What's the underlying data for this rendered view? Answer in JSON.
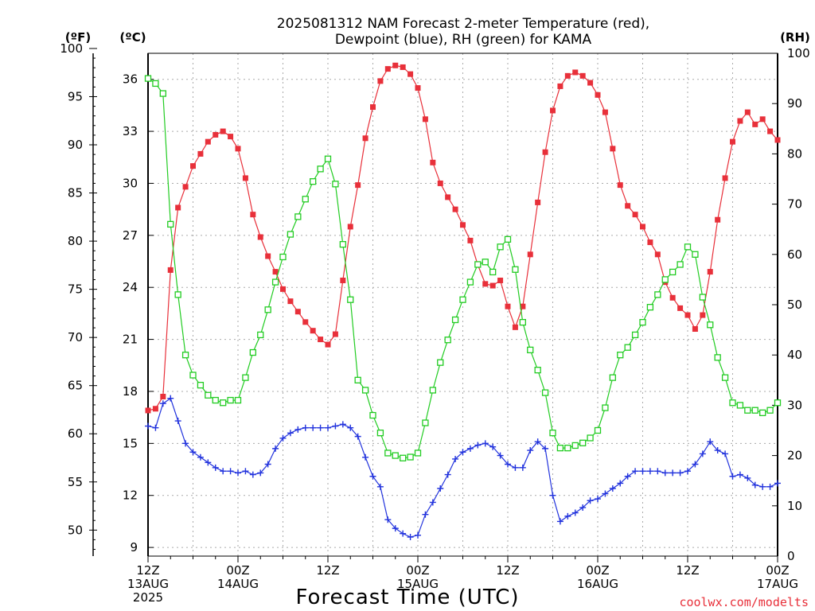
{
  "chart_data": {
    "type": "line",
    "title": [
      "2025081312 NAM Forecast 2-meter Temperature (red),",
      "Dewpoint (blue), RH (green) for KAMA"
    ],
    "xlabel": "Forecast Time (UTC)",
    "credit": "coolwx.com/modelts",
    "units": {
      "fahrenheit": "(ºF)",
      "celsius": "(ºC)",
      "rh": "(RH)"
    },
    "x_range_hours": [
      0,
      84
    ],
    "x_ticks": [
      {
        "h": 0,
        "lines": [
          "12Z",
          "13AUG",
          "2025"
        ]
      },
      {
        "h": 12,
        "lines": [
          "00Z",
          "14AUG"
        ]
      },
      {
        "h": 24,
        "lines": [
          "12Z"
        ]
      },
      {
        "h": 36,
        "lines": [
          "00Z",
          "15AUG"
        ]
      },
      {
        "h": 48,
        "lines": [
          "12Z"
        ]
      },
      {
        "h": 60,
        "lines": [
          "00Z",
          "16AUG"
        ]
      },
      {
        "h": 72,
        "lines": [
          "12Z"
        ]
      },
      {
        "h": 84,
        "lines": [
          "00Z",
          "17AUG"
        ]
      }
    ],
    "celsius_axis": {
      "ylim": [
        8.5,
        37.5
      ],
      "ticks": [
        9,
        12,
        15,
        18,
        21,
        24,
        27,
        30,
        33,
        36
      ]
    },
    "fahrenheit_axis": {
      "ticks": [
        50,
        55,
        60,
        65,
        70,
        75,
        80,
        85,
        90,
        95,
        100
      ]
    },
    "rh_axis": {
      "ylim": [
        0,
        100
      ],
      "ticks": [
        0,
        10,
        20,
        30,
        40,
        50,
        60,
        70,
        80,
        90,
        100
      ]
    },
    "series": [
      {
        "name": "Temperature",
        "color": "#e8303a",
        "marker": "filled-square",
        "axis": "celsius",
        "x": [
          0,
          1,
          2,
          3,
          4,
          5,
          6,
          7,
          8,
          9,
          10,
          11,
          12,
          13,
          14,
          15,
          16,
          17,
          18,
          19,
          20,
          21,
          22,
          23,
          24,
          25,
          26,
          27,
          28,
          29,
          30,
          31,
          32,
          33,
          34,
          35,
          36,
          37,
          38,
          39,
          40,
          41,
          42,
          43,
          44,
          45,
          46,
          47,
          48,
          49,
          50,
          51,
          52,
          53,
          54,
          55,
          56,
          57,
          58,
          59,
          60,
          61,
          62,
          63,
          64,
          65,
          66,
          67,
          68,
          69,
          70,
          71,
          72,
          73,
          74,
          75,
          76,
          77,
          78,
          79,
          80,
          81,
          82,
          83,
          84
        ],
        "values": [
          16.9,
          17.0,
          17.7,
          25.0,
          28.6,
          29.8,
          31.0,
          31.7,
          32.4,
          32.8,
          33.0,
          32.7,
          32.0,
          30.3,
          28.2,
          26.9,
          25.8,
          24.9,
          23.9,
          23.2,
          22.6,
          22.0,
          21.5,
          21.0,
          20.7,
          21.3,
          24.4,
          27.5,
          29.9,
          32.6,
          34.4,
          35.9,
          36.6,
          36.8,
          36.7,
          36.3,
          35.5,
          33.7,
          31.2,
          30.0,
          29.2,
          28.5,
          27.6,
          26.7,
          25.3,
          24.2,
          24.1,
          24.4,
          22.9,
          21.7,
          22.9,
          25.9,
          28.9,
          31.8,
          34.2,
          35.6,
          36.2,
          36.4,
          36.2,
          35.8,
          35.1,
          34.1,
          32.0,
          29.9,
          28.7,
          28.2,
          27.5,
          26.6,
          25.9,
          24.3,
          23.4,
          22.8,
          22.4,
          21.6,
          22.4,
          24.9,
          27.9,
          30.3,
          32.4,
          33.6,
          34.1,
          33.4,
          33.7,
          33.0,
          32.5
        ]
      },
      {
        "name": "Dewpoint",
        "color": "#2233dd",
        "marker": "plus",
        "axis": "celsius",
        "x": [
          0,
          1,
          2,
          3,
          4,
          5,
          6,
          7,
          8,
          9,
          10,
          11,
          12,
          13,
          14,
          15,
          16,
          17,
          18,
          19,
          20,
          21,
          22,
          23,
          24,
          25,
          26,
          27,
          28,
          29,
          30,
          31,
          32,
          33,
          34,
          35,
          36,
          37,
          38,
          39,
          40,
          41,
          42,
          43,
          44,
          45,
          46,
          47,
          48,
          49,
          50,
          51,
          52,
          53,
          54,
          55,
          56,
          57,
          58,
          59,
          60,
          61,
          62,
          63,
          64,
          65,
          66,
          67,
          68,
          69,
          70,
          71,
          72,
          73,
          74,
          75,
          76,
          77,
          78,
          79,
          80,
          81,
          82,
          83,
          84
        ],
        "values": [
          16.0,
          15.9,
          17.3,
          17.6,
          16.3,
          15.0,
          14.5,
          14.2,
          13.9,
          13.6,
          13.4,
          13.4,
          13.3,
          13.4,
          13.2,
          13.3,
          13.8,
          14.7,
          15.3,
          15.6,
          15.8,
          15.9,
          15.9,
          15.9,
          15.9,
          16.0,
          16.1,
          15.9,
          15.4,
          14.2,
          13.1,
          12.5,
          10.6,
          10.1,
          9.8,
          9.6,
          9.7,
          10.9,
          11.6,
          12.4,
          13.2,
          14.1,
          14.5,
          14.7,
          14.9,
          15.0,
          14.8,
          14.3,
          13.8,
          13.6,
          13.6,
          14.6,
          15.1,
          14.7,
          12.0,
          10.5,
          10.8,
          11.0,
          11.3,
          11.7,
          11.8,
          12.1,
          12.4,
          12.7,
          13.1,
          13.4,
          13.4,
          13.4,
          13.4,
          13.3,
          13.3,
          13.3,
          13.4,
          13.8,
          14.4,
          15.1,
          14.6,
          14.4,
          13.1,
          13.2,
          13.0,
          12.6,
          12.5,
          12.5,
          12.7
        ]
      },
      {
        "name": "RH",
        "color": "#22cc22",
        "marker": "open-square",
        "axis": "rh",
        "x": [
          0,
          1,
          2,
          3,
          4,
          5,
          6,
          7,
          8,
          9,
          10,
          11,
          12,
          13,
          14,
          15,
          16,
          17,
          18,
          19,
          20,
          21,
          22,
          23,
          24,
          25,
          26,
          27,
          28,
          29,
          30,
          31,
          32,
          33,
          34,
          35,
          36,
          37,
          38,
          39,
          40,
          41,
          42,
          43,
          44,
          45,
          46,
          47,
          48,
          49,
          50,
          51,
          52,
          53,
          54,
          55,
          56,
          57,
          58,
          59,
          60,
          61,
          62,
          63,
          64,
          65,
          66,
          67,
          68,
          69,
          70,
          71,
          72,
          73,
          74,
          75,
          76,
          77,
          78,
          79,
          80,
          81,
          82,
          83,
          84
        ],
        "values": [
          95,
          94,
          92,
          66,
          52,
          40,
          36,
          34,
          32,
          31,
          30.5,
          31,
          31,
          35.5,
          40.5,
          44,
          49,
          54.5,
          59.5,
          64,
          67.5,
          71,
          74.5,
          77,
          79,
          74,
          62,
          51,
          35,
          33,
          28,
          24.5,
          20.5,
          20,
          19.5,
          19.7,
          20.5,
          26.5,
          33,
          38.5,
          43,
          47,
          51,
          54.5,
          58,
          58.5,
          56.5,
          61.5,
          63,
          57,
          46.5,
          41,
          37,
          32.5,
          24.5,
          21.5,
          21.5,
          22,
          22.5,
          23.5,
          25,
          29.5,
          35.5,
          40,
          41.5,
          44,
          46.5,
          49.5,
          52,
          55,
          56.5,
          58,
          61.5,
          60,
          51.5,
          46,
          39.5,
          35.5,
          30.5,
          30,
          29,
          29,
          28.5,
          29,
          30.5
        ]
      }
    ]
  }
}
